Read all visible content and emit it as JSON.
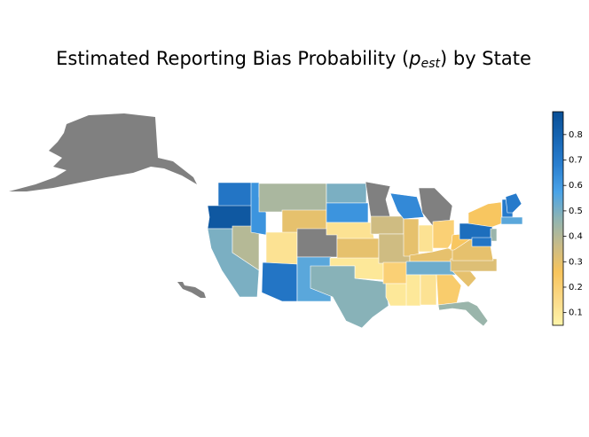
{
  "chart_data": {
    "type": "choropleth",
    "title": {
      "text": "Estimated Reporting Bias Probability (",
      "symbol": "p",
      "subscript": "est",
      "end": ") by State"
    },
    "values": [
      0.72,
      0.85,
      0.5,
      0.4,
      0.62,
      0.42,
      0.3,
      0.12,
      null,
      0.72,
      0.55,
      0.5,
      0.62,
      0.12,
      0.3,
      0.1,
      0.48,
      null,
      0.35,
      0.35,
      0.2,
      0.1,
      0.65,
      0.3,
      null,
      0.12,
      0.2,
      0.3,
      0.52,
      0.1,
      0.12,
      0.22,
      0.45,
      0.3,
      0.32,
      0.3,
      0.25,
      0.75,
      0.25,
      0.45,
      0.72,
      0.7,
      0.7,
      0.55
    ],
    "missing_color": "#808080",
    "colormap": [
      "#fff5aa",
      "#fbd987",
      "#f8c45c",
      "#c8bb88",
      "#8fb4b3",
      "#4aa3e8",
      "#2a7fd0",
      "#1766b4",
      "#0a4f95"
    ],
    "clim": [
      0.05,
      0.89
    ],
    "cticks": [
      0.1,
      0.2,
      0.3,
      0.4,
      0.5,
      0.6,
      0.7,
      0.8
    ]
  }
}
